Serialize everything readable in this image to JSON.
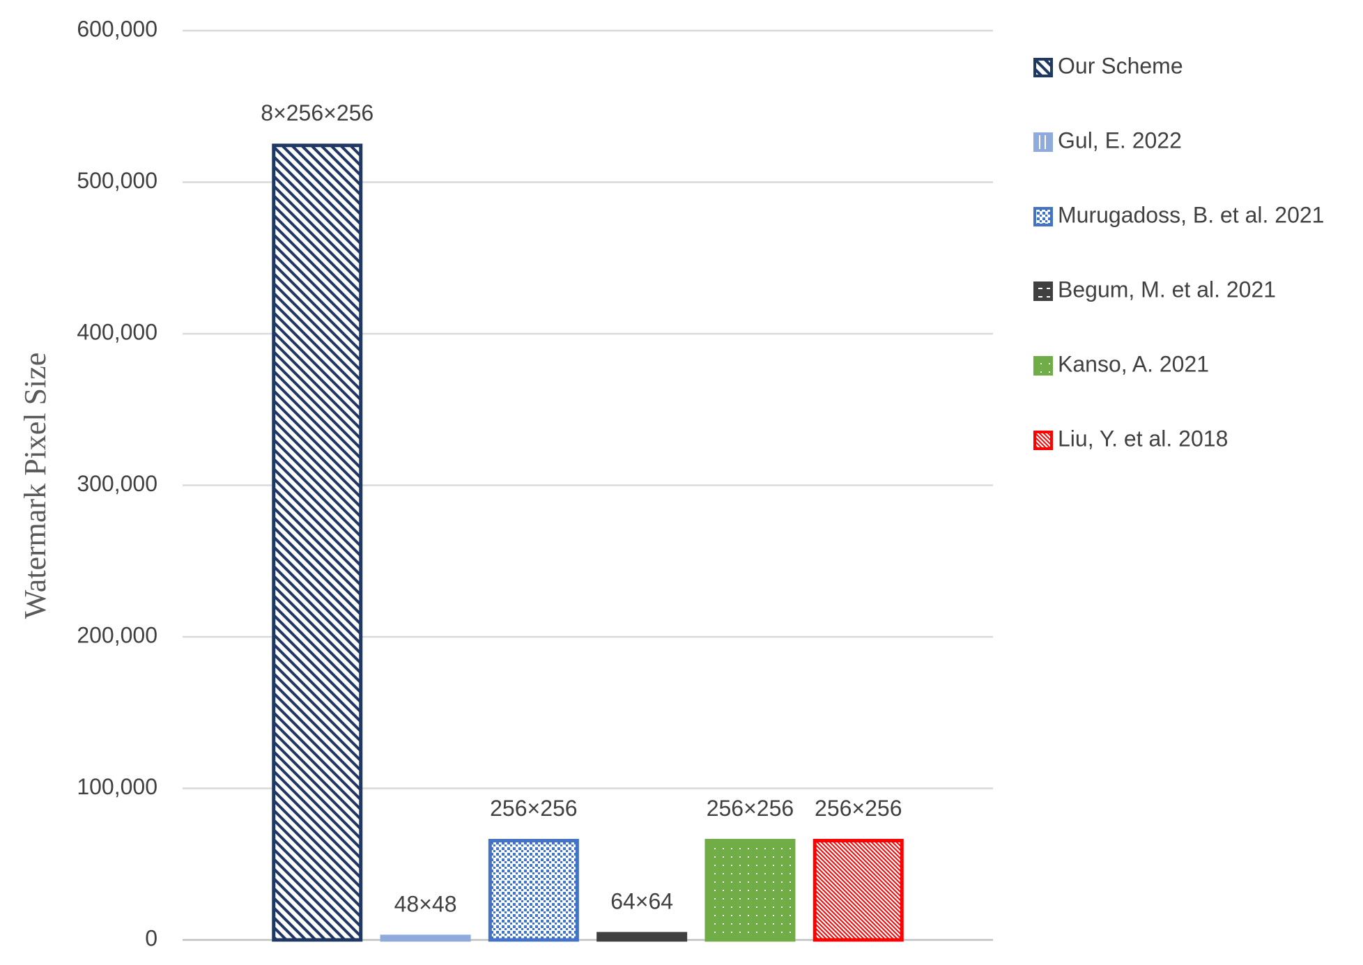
{
  "chart_data": {
    "type": "bar",
    "ylabel": "Watermark Pixel Size",
    "ylim": [
      0,
      600000
    ],
    "yticks": [
      0,
      {
        "value": 100000,
        "label": "100,000"
      },
      {
        "value": 200000,
        "label": "200,000"
      },
      {
        "value": 300000,
        "label": "300,000"
      },
      {
        "value": 400000,
        "label": "400,000"
      },
      {
        "value": 500000,
        "label": "500,000"
      },
      {
        "value": 600000,
        "label": "600,000"
      }
    ],
    "grid": true,
    "legend": "right",
    "series": [
      {
        "name": "Our Scheme",
        "color": "#1f3864",
        "pattern": "diagonal",
        "values": [
          524288
        ],
        "value_labels": [
          "8×256×256"
        ]
      },
      {
        "name": "Gul, E. 2022",
        "color": "#8faadc",
        "pattern": "vertical",
        "values": [
          2304
        ],
        "value_labels": [
          "48×48"
        ]
      },
      {
        "name": "Murugadoss, B. et al. 2021",
        "color": "#4472c4",
        "pattern": "checker",
        "values": [
          65536
        ],
        "value_labels": [
          "256×256"
        ]
      },
      {
        "name": "Begum, M. et al. 2021",
        "color": "#404040",
        "pattern": "dashes",
        "values": [
          4096
        ],
        "value_labels": [
          "64×64"
        ]
      },
      {
        "name": "Kanso, A. 2021",
        "color": "#70ad47",
        "pattern": "dots",
        "values": [
          65536
        ],
        "value_labels": [
          "256×256"
        ]
      },
      {
        "name": "Liu, Y. et al. 2018",
        "color": "#ff0000",
        "pattern": "fine-diagonal",
        "values": [
          65536
        ],
        "value_labels": [
          "256×256"
        ]
      }
    ]
  }
}
